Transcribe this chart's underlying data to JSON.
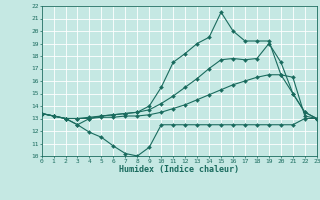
{
  "xlabel": "Humidex (Indice chaleur)",
  "xlim": [
    0,
    23
  ],
  "ylim": [
    10,
    22
  ],
  "xticks": [
    0,
    1,
    2,
    3,
    4,
    5,
    6,
    7,
    8,
    9,
    10,
    11,
    12,
    13,
    14,
    15,
    16,
    17,
    18,
    19,
    20,
    21,
    22,
    23
  ],
  "yticks": [
    10,
    11,
    12,
    13,
    14,
    15,
    16,
    17,
    18,
    19,
    20,
    21,
    22
  ],
  "background_color": "#c5e8e3",
  "line_color": "#1a6b5e",
  "grid_color": "#ffffff",
  "lines": [
    {
      "x": [
        0,
        1,
        2,
        3,
        4,
        5,
        6,
        7,
        8,
        9,
        10,
        11,
        12,
        13,
        14,
        15,
        16,
        17,
        18,
        19,
        20,
        21,
        22,
        23
      ],
      "y": [
        13.4,
        13.2,
        13.0,
        12.5,
        11.9,
        11.5,
        10.8,
        10.2,
        10.0,
        10.7,
        12.5,
        12.5,
        12.5,
        12.5,
        12.5,
        12.5,
        12.5,
        12.5,
        12.5,
        12.5,
        12.5,
        12.5,
        13.0,
        13.0
      ]
    },
    {
      "x": [
        0,
        1,
        2,
        3,
        4,
        5,
        6,
        7,
        8,
        9,
        10,
        11,
        12,
        13,
        14,
        15,
        16,
        17,
        18,
        19,
        20,
        21,
        22,
        23
      ],
      "y": [
        13.4,
        13.2,
        13.0,
        13.0,
        13.0,
        13.1,
        13.1,
        13.2,
        13.2,
        13.3,
        13.5,
        13.8,
        14.1,
        14.5,
        14.9,
        15.3,
        15.7,
        16.0,
        16.3,
        16.5,
        16.5,
        16.3,
        13.2,
        13.0
      ]
    },
    {
      "x": [
        0,
        1,
        2,
        3,
        4,
        5,
        6,
        7,
        8,
        9,
        10,
        11,
        12,
        13,
        14,
        15,
        16,
        17,
        18,
        19,
        20,
        21,
        22,
        23
      ],
      "y": [
        13.4,
        13.2,
        13.0,
        13.0,
        13.1,
        13.2,
        13.3,
        13.4,
        13.5,
        13.7,
        14.2,
        14.8,
        15.5,
        16.2,
        17.0,
        17.7,
        17.8,
        17.7,
        17.8,
        19.0,
        17.5,
        15.0,
        13.5,
        13.0
      ]
    },
    {
      "x": [
        0,
        1,
        2,
        3,
        4,
        5,
        6,
        7,
        8,
        9,
        10,
        11,
        12,
        13,
        14,
        15,
        16,
        17,
        18,
        19,
        20,
        21,
        22,
        23
      ],
      "y": [
        13.4,
        13.2,
        13.0,
        12.5,
        13.0,
        13.2,
        13.3,
        13.4,
        13.5,
        14.0,
        15.5,
        17.5,
        18.2,
        19.0,
        19.5,
        21.5,
        20.0,
        19.2,
        19.2,
        19.2,
        16.5,
        15.0,
        13.5,
        13.0
      ]
    }
  ]
}
